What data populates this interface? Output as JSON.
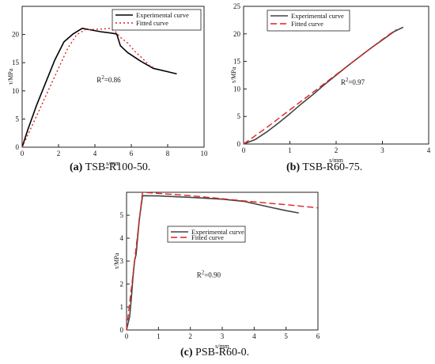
{
  "chart_data": [
    {
      "type": "line",
      "panel_id": "a",
      "caption_letter": "(a)",
      "caption_text": "TSB-R100-50.",
      "xlabel": "s/mm",
      "ylabel": "τ/MPa",
      "xlim": [
        0,
        10
      ],
      "ylim": [
        0,
        25
      ],
      "xticks": [
        0,
        2,
        4,
        6,
        8,
        10
      ],
      "yticks": [
        0,
        5,
        10,
        15,
        20
      ],
      "r2_label": "R²=0.86",
      "r2_pos": [
        4.1,
        11.5
      ],
      "legend_position": "top-right",
      "series": [
        {
          "name": "Experimental curve",
          "style": "solid",
          "color": "#000000",
          "points": [
            [
              0,
              0
            ],
            [
              0.3,
              3
            ],
            [
              0.8,
              7.5
            ],
            [
              1.3,
              11.5
            ],
            [
              1.8,
              15.5
            ],
            [
              2.3,
              18.7
            ],
            [
              2.8,
              20.1
            ],
            [
              3.3,
              21.1
            ],
            [
              3.8,
              20.8
            ],
            [
              4.3,
              20.5
            ],
            [
              4.8,
              20.3
            ],
            [
              5.2,
              20.1
            ],
            [
              5.4,
              18.0
            ],
            [
              5.8,
              16.8
            ],
            [
              6.5,
              15.3
            ],
            [
              7.2,
              14.0
            ],
            [
              8.0,
              13.4
            ],
            [
              8.5,
              13.0
            ]
          ]
        },
        {
          "name": "Fitted curve",
          "style": "dotted",
          "color": "#e02020",
          "points": [
            [
              0,
              0
            ],
            [
              0.5,
              3.5
            ],
            [
              1.0,
              7.0
            ],
            [
              1.5,
              10.5
            ],
            [
              2.0,
              14.0
            ],
            [
              2.5,
              17.5
            ],
            [
              3.0,
              20.0
            ],
            [
              3.5,
              20.9
            ],
            [
              4.0,
              20.9
            ],
            [
              4.5,
              21.0
            ],
            [
              4.8,
              21.1
            ],
            [
              5.1,
              20.6
            ],
            [
              5.4,
              19.5
            ],
            [
              5.8,
              18.5
            ],
            [
              6.2,
              17.0
            ],
            [
              6.6,
              15.8
            ],
            [
              7.0,
              14.5
            ],
            [
              7.2,
              14.2
            ]
          ]
        }
      ]
    },
    {
      "type": "line",
      "panel_id": "b",
      "caption_letter": "(b)",
      "caption_text": "TSB-R60-75.",
      "xlabel": "s/mm",
      "ylabel": "τ/MPa",
      "xlim": [
        0,
        4
      ],
      "ylim": [
        0,
        25
      ],
      "xticks": [
        0,
        1,
        2,
        3,
        4
      ],
      "yticks": [
        0,
        5,
        10,
        15,
        20,
        25
      ],
      "r2_label": "R²=0.97",
      "r2_pos": [
        2.1,
        10.8
      ],
      "legend_position": "top-left",
      "series": [
        {
          "name": "Experimental curve",
          "style": "solid",
          "color": "#444444",
          "points": [
            [
              0,
              0
            ],
            [
              0.25,
              0.8
            ],
            [
              0.5,
              2.2
            ],
            [
              0.75,
              3.8
            ],
            [
              1.0,
              5.5
            ],
            [
              1.25,
              7.3
            ],
            [
              1.5,
              9.0
            ],
            [
              1.75,
              10.8
            ],
            [
              2.0,
              12.5
            ],
            [
              2.25,
              14.2
            ],
            [
              2.5,
              15.8
            ],
            [
              2.75,
              17.4
            ],
            [
              3.0,
              18.9
            ],
            [
              3.25,
              20.4
            ],
            [
              3.45,
              21.2
            ]
          ]
        },
        {
          "name": "Fitted curve",
          "style": "dashed",
          "color": "#e02020",
          "points": [
            [
              0,
              0
            ],
            [
              0.25,
              1.5
            ],
            [
              0.5,
              3.0
            ],
            [
              0.75,
              4.6
            ],
            [
              1.0,
              6.2
            ],
            [
              1.25,
              7.8
            ],
            [
              1.5,
              9.4
            ],
            [
              1.75,
              11.0
            ],
            [
              2.0,
              12.6
            ],
            [
              2.25,
              14.2
            ],
            [
              2.5,
              15.8
            ],
            [
              2.75,
              17.4
            ],
            [
              3.0,
              19.0
            ],
            [
              3.2,
              20.2
            ],
            [
              3.3,
              20.8
            ]
          ]
        }
      ]
    },
    {
      "type": "line",
      "panel_id": "c",
      "caption_letter": "(c)",
      "caption_text": "PSB-R60-0.",
      "xlabel": "s/mm",
      "ylabel": "τ/MPa",
      "xlim": [
        0,
        6
      ],
      "ylim": [
        0,
        6
      ],
      "xticks": [
        0,
        1,
        2,
        3,
        4,
        5,
        6
      ],
      "yticks": [
        0,
        1,
        2,
        3,
        4,
        5
      ],
      "r2_label": "R²=0.90",
      "r2_pos": [
        2.2,
        2.3
      ],
      "legend_position": "upper-left",
      "series": [
        {
          "name": "Experimental curve",
          "style": "solid",
          "color": "#444444",
          "points": [
            [
              0,
              0
            ],
            [
              0.1,
              0.6
            ],
            [
              0.15,
              1.4
            ],
            [
              0.2,
              2.3
            ],
            [
              0.25,
              3.0
            ],
            [
              0.3,
              3.3
            ],
            [
              0.4,
              4.8
            ],
            [
              0.5,
              5.85
            ],
            [
              1.0,
              5.84
            ],
            [
              2.0,
              5.78
            ],
            [
              3.0,
              5.7
            ],
            [
              3.7,
              5.6
            ],
            [
              4.5,
              5.35
            ],
            [
              5.0,
              5.2
            ],
            [
              5.4,
              5.1
            ]
          ]
        },
        {
          "name": "Fitted curve",
          "style": "dashed",
          "color": "#e02020",
          "points": [
            [
              0,
              0
            ],
            [
              0.1,
              1.2
            ],
            [
              0.2,
              2.4
            ],
            [
              0.3,
              3.6
            ],
            [
              0.4,
              4.8
            ],
            [
              0.5,
              6.0
            ],
            [
              1.0,
              5.95
            ],
            [
              2.0,
              5.85
            ],
            [
              3.0,
              5.72
            ],
            [
              3.7,
              5.62
            ],
            [
              4.5,
              5.52
            ],
            [
              5.3,
              5.42
            ],
            [
              6.0,
              5.32
            ]
          ]
        }
      ]
    }
  ]
}
